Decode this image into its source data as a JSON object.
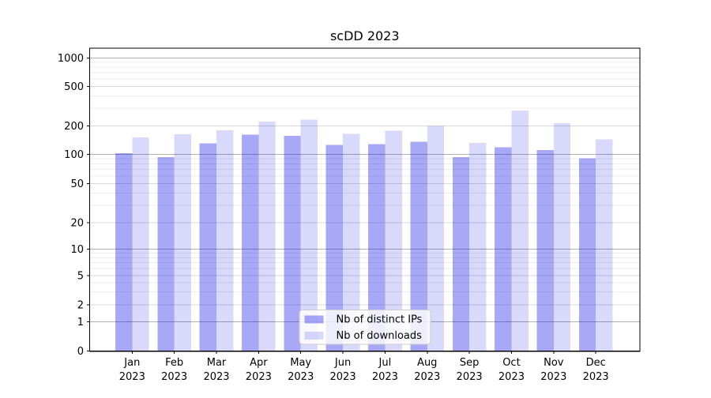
{
  "chart_data": {
    "type": "bar",
    "title": "scDD 2023",
    "categories": [
      "Jan",
      "Feb",
      "Mar",
      "Apr",
      "May",
      "Jun",
      "Jul",
      "Aug",
      "Sep",
      "Oct",
      "Nov",
      "Dec"
    ],
    "category_year": "2023",
    "series": [
      {
        "name": "Nb of distinct IPs",
        "color": "rgba(0,0,230,0.34)",
        "values": [
          103,
          93,
          131,
          161,
          156,
          126,
          128,
          135,
          93,
          119,
          111,
          91
        ]
      },
      {
        "name": "Nb of downloads",
        "color": "rgba(0,0,230,0.15)",
        "values": [
          151,
          162,
          180,
          221,
          231,
          165,
          178,
          199,
          132,
          285,
          213,
          143
        ]
      }
    ],
    "yscale": "symlog",
    "yticks": [
      0,
      1,
      2,
      5,
      10,
      20,
      50,
      100,
      200,
      500,
      1000
    ],
    "minor_gridlines": [
      3,
      4,
      6,
      7,
      8,
      9,
      30,
      40,
      60,
      70,
      80,
      90,
      300,
      400,
      600,
      700,
      800,
      900
    ],
    "ylim": [
      0,
      1280
    ],
    "grid": true,
    "legend_position": "lower center",
    "colors": {
      "grid_major_power10": "#b0b0b0",
      "grid_major_other": "#d9d9d9",
      "grid_minor": "#ececec",
      "spine": "#000000",
      "legend_border": "#cccccc",
      "legend_bg": "#ffffff"
    }
  }
}
